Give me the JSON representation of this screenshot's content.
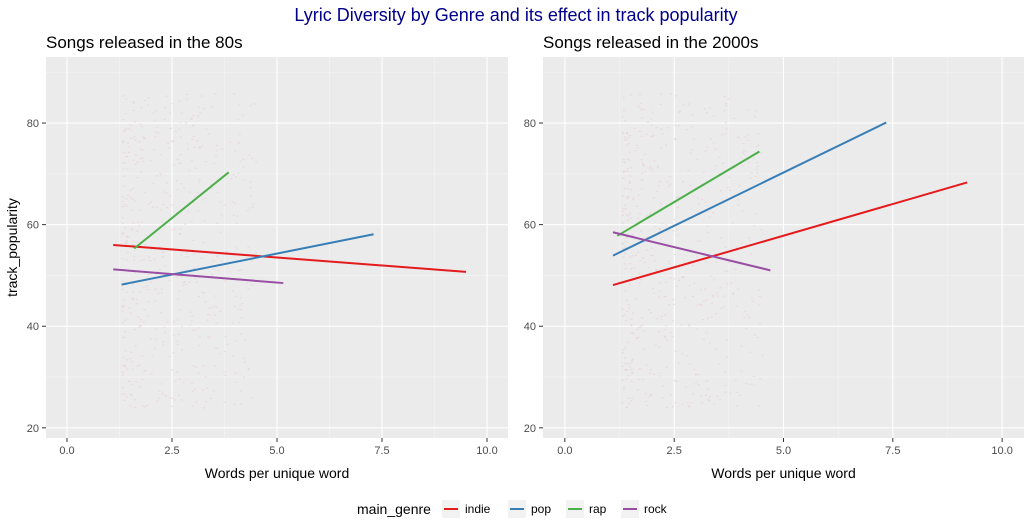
{
  "figure": {
    "title": "Lyric Diversity by Genre and its effect in track popularity",
    "title_color": "#00008B"
  },
  "chart_data": [
    {
      "type": "line",
      "title": "Songs released in the 80s",
      "xlabel": "Words per unique word",
      "ylabel": "track_popularity",
      "xlim": [
        -0.5,
        10.5
      ],
      "ylim": [
        18,
        93
      ],
      "x_ticks": [
        0,
        2.5,
        5,
        7.5,
        10
      ],
      "x_tick_labels": [
        "0.0",
        "2.5",
        "5.0",
        "7.5",
        "10.0"
      ],
      "y_ticks": [
        20,
        40,
        60,
        80
      ],
      "y_tick_labels": [
        "20",
        "40",
        "60",
        "80"
      ],
      "grid": true,
      "series": [
        {
          "name": "indie",
          "color": "#E41A1C",
          "x": [
            1.1,
            9.5
          ],
          "y": [
            56.0,
            50.7
          ]
        },
        {
          "name": "pop",
          "color": "#377EB8",
          "x": [
            1.3,
            7.3
          ],
          "y": [
            48.2,
            58.1
          ]
        },
        {
          "name": "rap",
          "color": "#4DAF4A",
          "x": [
            1.6,
            3.85
          ],
          "y": [
            55.3,
            70.3
          ]
        },
        {
          "name": "rock",
          "color": "#984EA3",
          "x": [
            1.1,
            5.15
          ],
          "y": [
            51.2,
            48.5
          ]
        }
      ]
    },
    {
      "type": "line",
      "title": "Songs released in the 2000s",
      "xlabel": "Words per unique word",
      "ylabel": "",
      "xlim": [
        -0.5,
        10.5
      ],
      "ylim": [
        18,
        93
      ],
      "x_ticks": [
        0,
        2.5,
        5,
        7.5,
        10
      ],
      "x_tick_labels": [
        "0.0",
        "2.5",
        "5.0",
        "7.5",
        "10.0"
      ],
      "y_ticks": [
        20,
        40,
        60,
        80
      ],
      "y_tick_labels": [
        "20",
        "40",
        "60",
        "80"
      ],
      "grid": true,
      "series": [
        {
          "name": "indie",
          "color": "#E41A1C",
          "x": [
            1.1,
            9.2
          ],
          "y": [
            48.1,
            68.3
          ]
        },
        {
          "name": "pop",
          "color": "#377EB8",
          "x": [
            1.1,
            7.35
          ],
          "y": [
            53.9,
            80.1
          ]
        },
        {
          "name": "rap",
          "color": "#4DAF4A",
          "x": [
            1.2,
            4.45
          ],
          "y": [
            57.8,
            74.4
          ]
        },
        {
          "name": "rock",
          "color": "#984EA3",
          "x": [
            1.1,
            4.7
          ],
          "y": [
            58.5,
            51.0
          ]
        }
      ]
    }
  ],
  "legend": {
    "title": "main_genre",
    "position": "bottom",
    "items": [
      {
        "label": "indie",
        "color": "#E41A1C"
      },
      {
        "label": "pop",
        "color": "#377EB8"
      },
      {
        "label": "rap",
        "color": "#4DAF4A"
      },
      {
        "label": "rock",
        "color": "#984EA3"
      }
    ]
  }
}
